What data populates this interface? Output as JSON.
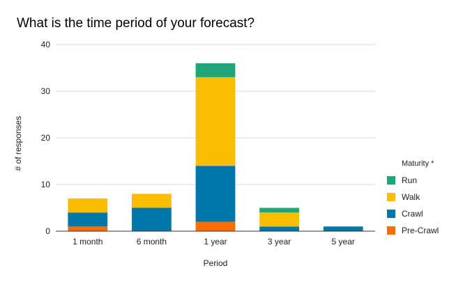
{
  "chart_data": {
    "type": "bar",
    "stacked": true,
    "title": "What is the time period of your forecast?",
    "xlabel": "Period",
    "ylabel": "# of responses",
    "ylim": [
      0,
      40
    ],
    "yticks": [
      0,
      10,
      20,
      30,
      40
    ],
    "grid": true,
    "legend_position": "right",
    "legend_title": "Maturity *",
    "categories": [
      "1 month",
      "6 month",
      "1 year",
      "3 year",
      "5 year"
    ],
    "series": [
      {
        "name": "Pre-Crawl",
        "color": "#ff6d01",
        "values": [
          1,
          0,
          2,
          0,
          0
        ]
      },
      {
        "name": "Crawl",
        "color": "#0077a8",
        "values": [
          3,
          5,
          12,
          1,
          1
        ]
      },
      {
        "name": "Walk",
        "color": "#fbbc04",
        "values": [
          3,
          3,
          19,
          3,
          0
        ]
      },
      {
        "name": "Run",
        "color": "#1fa67a",
        "values": [
          0,
          0,
          3,
          1,
          0
        ]
      }
    ],
    "legend_order": [
      "Run",
      "Walk",
      "Crawl",
      "Pre-Crawl"
    ]
  }
}
